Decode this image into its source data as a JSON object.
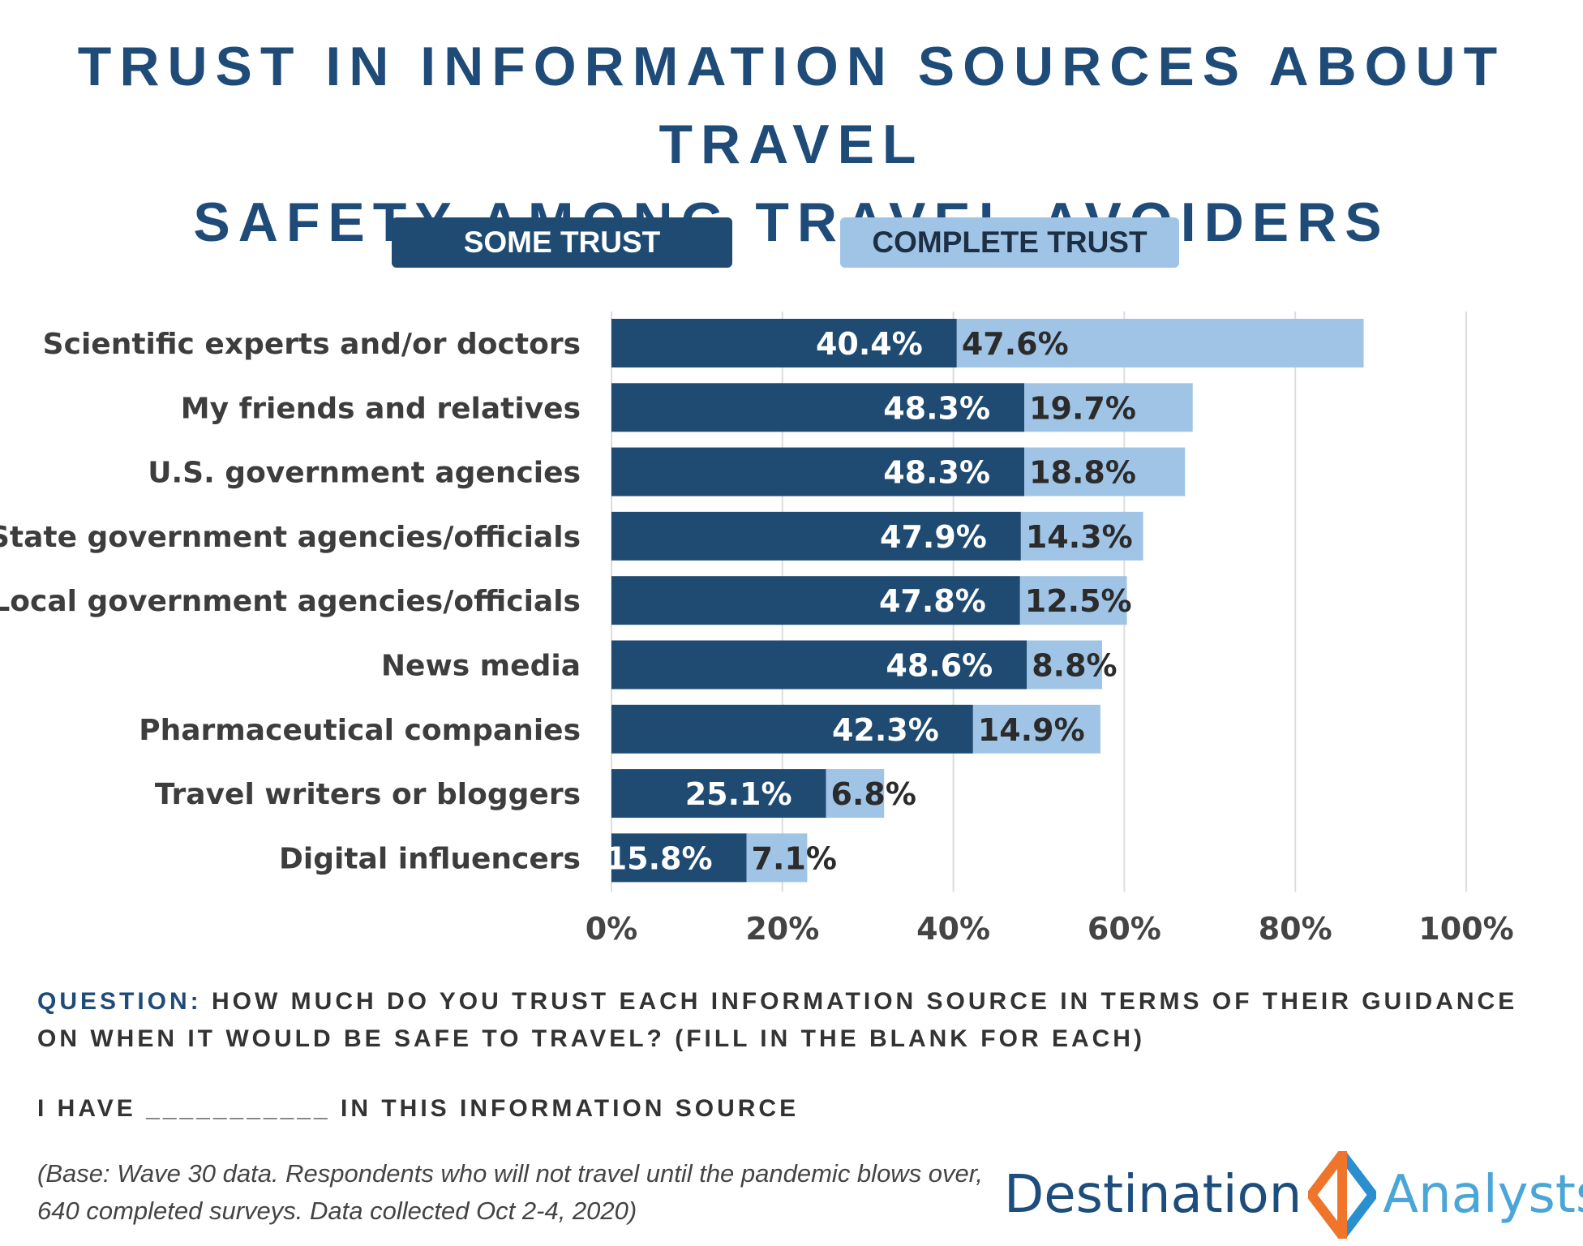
{
  "title": {
    "line1": "TRUST IN INFORMATION SOURCES ABOUT TRAVEL",
    "line2": "SAFETY AMONG TRAVEL AVOIDERS"
  },
  "colors": {
    "title": "#1f4b79",
    "some_trust": "#1f4b73",
    "complete_trust": "#9fc4e6",
    "grid": "#dddddd",
    "logo_text_dark": "#1d4d7c",
    "logo_text_light": "#4aa6d6",
    "logo_orange": "#f0752b",
    "logo_blue": "#2a8fcf"
  },
  "legend": {
    "some_trust": "SOME TRUST",
    "complete_trust": "COMPLETE TRUST"
  },
  "chart_data": {
    "type": "bar",
    "orientation": "horizontal",
    "stacked": true,
    "categories": [
      "Scientific experts and/or doctors",
      "My friends and relatives",
      "U.S. government agencies",
      "State government agencies/officials",
      "Local government agencies/officials",
      "News media",
      "Pharmaceutical companies",
      "Travel writers or bloggers",
      "Digital influencers"
    ],
    "series": [
      {
        "name": "SOME TRUST",
        "values": [
          40.4,
          48.3,
          48.3,
          47.9,
          47.8,
          48.6,
          42.3,
          25.1,
          15.8
        ],
        "labels": [
          "40.4%",
          "48.3%",
          "48.3%",
          "47.9%",
          "47.8%",
          "48.6%",
          "42.3%",
          "25.1%",
          "15.8%"
        ]
      },
      {
        "name": "COMPLETE TRUST",
        "values": [
          47.6,
          19.7,
          18.8,
          14.3,
          12.5,
          8.8,
          14.9,
          6.8,
          7.1
        ],
        "labels": [
          "47.6%",
          "19.7%",
          "18.8%",
          "14.3%",
          "12.5%",
          "8.8%",
          "14.9%",
          "6.8%",
          "7.1%"
        ]
      }
    ],
    "xlim": [
      0,
      100
    ],
    "xticks": [
      0,
      20,
      40,
      60,
      80,
      100
    ],
    "xtick_labels": [
      "0%",
      "20%",
      "40%",
      "60%",
      "80%",
      "100%"
    ],
    "grid": true,
    "legend_position": "top-center",
    "xlabel": "",
    "ylabel": ""
  },
  "question": {
    "key": "QUESTION:",
    "text": "HOW MUCH DO YOU TRUST EACH INFORMATION SOURCE IN TERMS OF THEIR GUIDANCE ON WHEN IT WOULD BE SAFE TO TRAVEL? (FILL IN THE BLANK FOR EACH)"
  },
  "fill_in": "I HAVE ___________ IN THIS INFORMATION SOURCE",
  "base_note": "(Base: Wave 30 data. Respondents who will not travel until the pandemic blows over, 640 completed surveys. Data collected Oct 2-4, 2020)",
  "logo": {
    "word1": "Destination",
    "word2": "Analysts"
  }
}
